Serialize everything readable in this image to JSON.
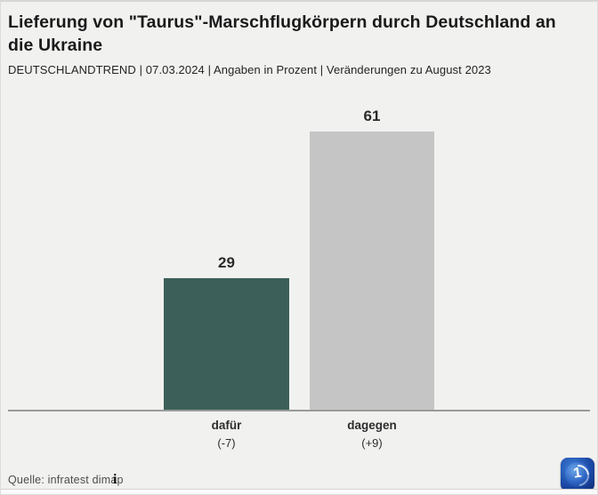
{
  "header": {
    "title": "Lieferung von \"Taurus\"-Marschflugkörpern durch Deutschland an die Ukraine",
    "subtitle": "DEUTSCHLANDTREND | 07.03.2024 | Angaben in Prozent | Veränderungen zu August 2023"
  },
  "chart_data": {
    "type": "bar",
    "title": "Lieferung von \"Taurus\"-Marschflugkörpern durch Deutschland an die Ukraine",
    "subtitle": "DEUTSCHLANDTREND | 07.03.2024 | Angaben in Prozent | Veränderungen zu August 2023",
    "unit": "Prozent",
    "categories": [
      "dafür",
      "dagegen"
    ],
    "values": [
      29,
      61
    ],
    "changes": [
      "(-7)",
      "(+9)"
    ],
    "bar_colors": [
      "#3d5f59",
      "#c5c5c5"
    ],
    "xlabel": "",
    "ylabel": "",
    "ylim": [
      0,
      65
    ],
    "grid": false,
    "legend": "none",
    "value_labels_shown": true,
    "baseline_color": "#9a9a9a"
  },
  "footer": {
    "source": "Quelle: infratest dimap",
    "info_icon_glyph": "i",
    "logo_name": "ard-tagesschau-logo",
    "logo_mark": "1",
    "logo_colors": {
      "outer": "#123a8c",
      "sphere": "#2c63c2",
      "mark": "#ffffff"
    }
  },
  "colors": {
    "background": "#f1f1f0",
    "title_text": "#1a1a1a",
    "body_text": "#2d2d2d",
    "source_text": "#4d4d4d"
  }
}
